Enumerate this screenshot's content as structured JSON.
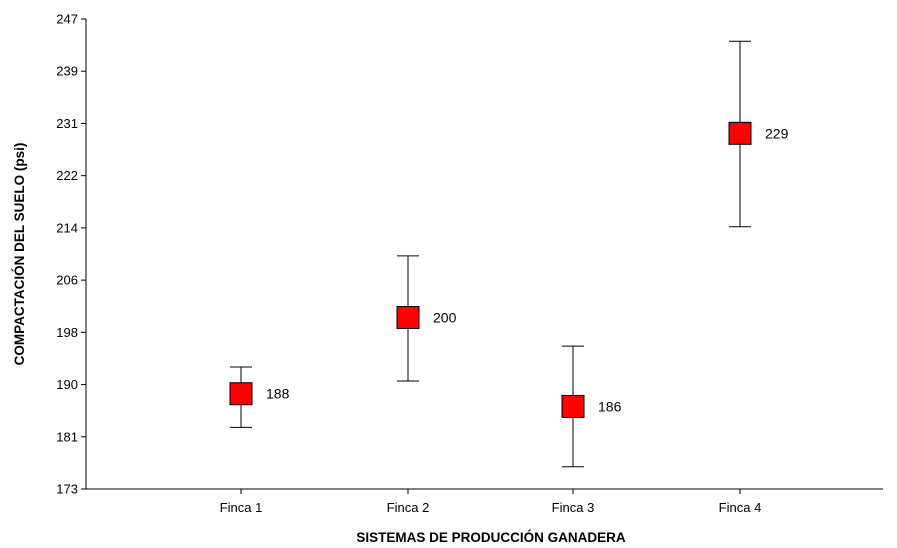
{
  "chart_data": {
    "type": "scatter",
    "title": "",
    "xlabel": "SISTEMAS DE PRODUCCIÓN GANADERA",
    "ylabel": "COMPACTACIÓN DEL SUELO (psi)",
    "ylim": [
      173,
      247
    ],
    "yticks": [
      "173",
      "181",
      "190",
      "198",
      "206",
      "214",
      "222",
      "231",
      "239",
      "247"
    ],
    "categories": [
      "Finca 1",
      "Finca 2",
      "Finca 3",
      "Finca 4"
    ],
    "values": [
      188,
      200,
      186,
      229
    ],
    "labels": [
      "188",
      "200",
      "186",
      "229"
    ],
    "error_low": [
      182.7,
      190.0,
      176.5,
      214.3
    ],
    "error_high": [
      192.2,
      209.7,
      195.5,
      243.5
    ],
    "grid": false,
    "legend": "none",
    "colors": {
      "marker": "#ff0000",
      "marker_edge": "#000000",
      "axis": "#000000"
    }
  }
}
